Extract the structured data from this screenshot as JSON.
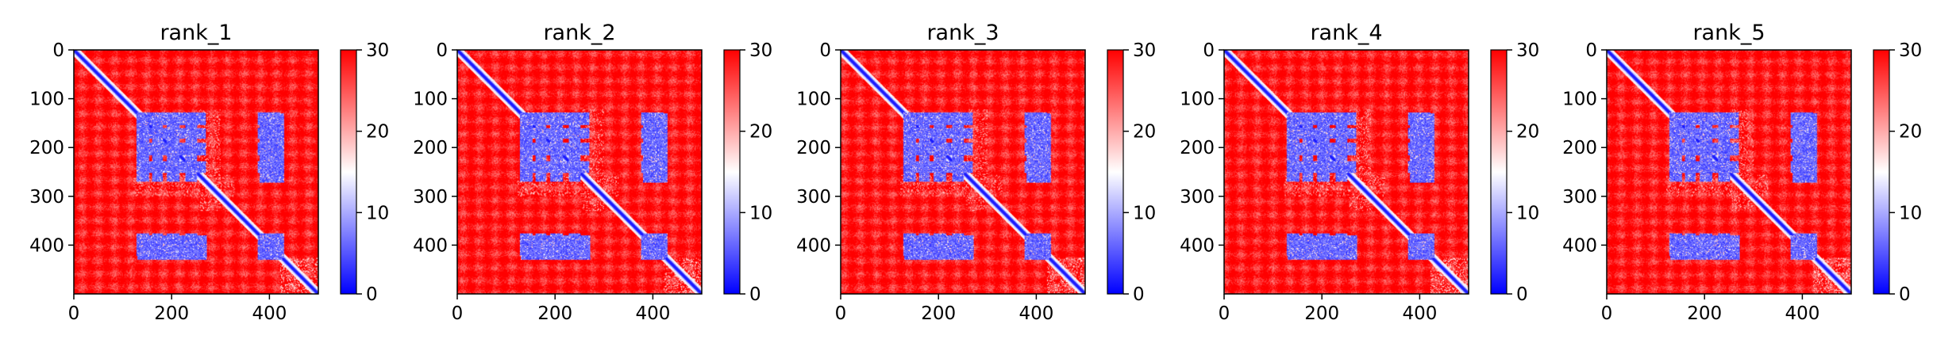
{
  "chart_data": [
    {
      "type": "heatmap",
      "title": "rank_1",
      "xlabel": "",
      "ylabel": "",
      "xlim": [
        0,
        500
      ],
      "ylim": [
        500,
        0
      ],
      "x_ticks": [
        "0",
        "200",
        "400"
      ],
      "y_ticks": [
        "0",
        "100",
        "200",
        "300",
        "400"
      ],
      "colorbar": {
        "range": [
          0,
          30
        ],
        "ticks": [
          "0",
          "10",
          "20",
          "30"
        ],
        "colormap": "bwr"
      },
      "variation": 0
    },
    {
      "type": "heatmap",
      "title": "rank_2",
      "xlabel": "",
      "ylabel": "",
      "xlim": [
        0,
        500
      ],
      "ylim": [
        500,
        0
      ],
      "x_ticks": [
        "0",
        "200",
        "400"
      ],
      "y_ticks": [
        "0",
        "100",
        "200",
        "300",
        "400"
      ],
      "colorbar": {
        "range": [
          0,
          30
        ],
        "ticks": [
          "0",
          "10",
          "20",
          "30"
        ],
        "colormap": "bwr"
      },
      "variation": 1
    },
    {
      "type": "heatmap",
      "title": "rank_3",
      "xlabel": "",
      "ylabel": "",
      "xlim": [
        0,
        500
      ],
      "ylim": [
        500,
        0
      ],
      "x_ticks": [
        "0",
        "200",
        "400"
      ],
      "y_ticks": [
        "0",
        "100",
        "200",
        "300",
        "400"
      ],
      "colorbar": {
        "range": [
          0,
          30
        ],
        "ticks": [
          "0",
          "10",
          "20",
          "30"
        ],
        "colormap": "bwr"
      },
      "variation": 2
    },
    {
      "type": "heatmap",
      "title": "rank_4",
      "xlabel": "",
      "ylabel": "",
      "xlim": [
        0,
        500
      ],
      "ylim": [
        500,
        0
      ],
      "x_ticks": [
        "0",
        "200",
        "400"
      ],
      "y_ticks": [
        "0",
        "100",
        "200",
        "300",
        "400"
      ],
      "colorbar": {
        "range": [
          0,
          30
        ],
        "ticks": [
          "0",
          "10",
          "20",
          "30"
        ],
        "colormap": "bwr"
      },
      "variation": 3
    },
    {
      "type": "heatmap",
      "title": "rank_5",
      "xlabel": "",
      "ylabel": "",
      "xlim": [
        0,
        500
      ],
      "ylim": [
        500,
        0
      ],
      "x_ticks": [
        "0",
        "200",
        "400"
      ],
      "y_ticks": [
        "0",
        "100",
        "200",
        "300",
        "400"
      ],
      "colorbar": {
        "range": [
          0,
          30
        ],
        "ticks": [
          "0",
          "10",
          "20",
          "30"
        ],
        "colormap": "bwr"
      },
      "variation": 4
    }
  ]
}
